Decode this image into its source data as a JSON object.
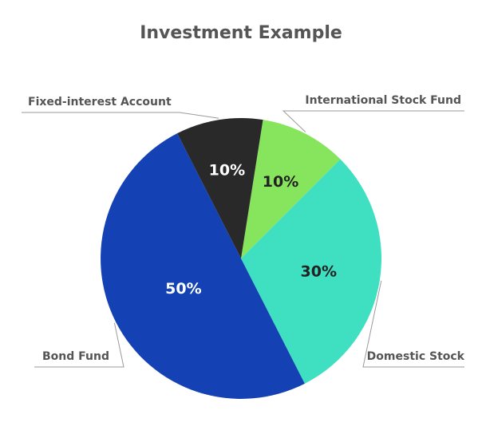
{
  "colors": {
    "background": "#ffffff",
    "title_text": "#555555",
    "callout_text": "#555555",
    "leader_line": "#9a9a9a"
  },
  "chart_data": {
    "type": "pie",
    "title": "Investment Example",
    "legend": "none",
    "start_angle_deg": 9,
    "direction": "clockwise",
    "slices": [
      {
        "label": "International Stock Fund",
        "value": 10,
        "value_label": "10%",
        "color": "#86e55c",
        "text_color": "#222222"
      },
      {
        "label": "Domestic Stock",
        "value": 30,
        "value_label": "30%",
        "color": "#3ee0c1",
        "text_color": "#222222"
      },
      {
        "label": "Bond Fund",
        "value": 50,
        "value_label": "50%",
        "color": "#1442b4",
        "text_color": "#ffffff"
      },
      {
        "label": "Fixed-interest Account",
        "value": 10,
        "value_label": "10%",
        "color": "#292929",
        "text_color": "#ffffff"
      }
    ]
  }
}
